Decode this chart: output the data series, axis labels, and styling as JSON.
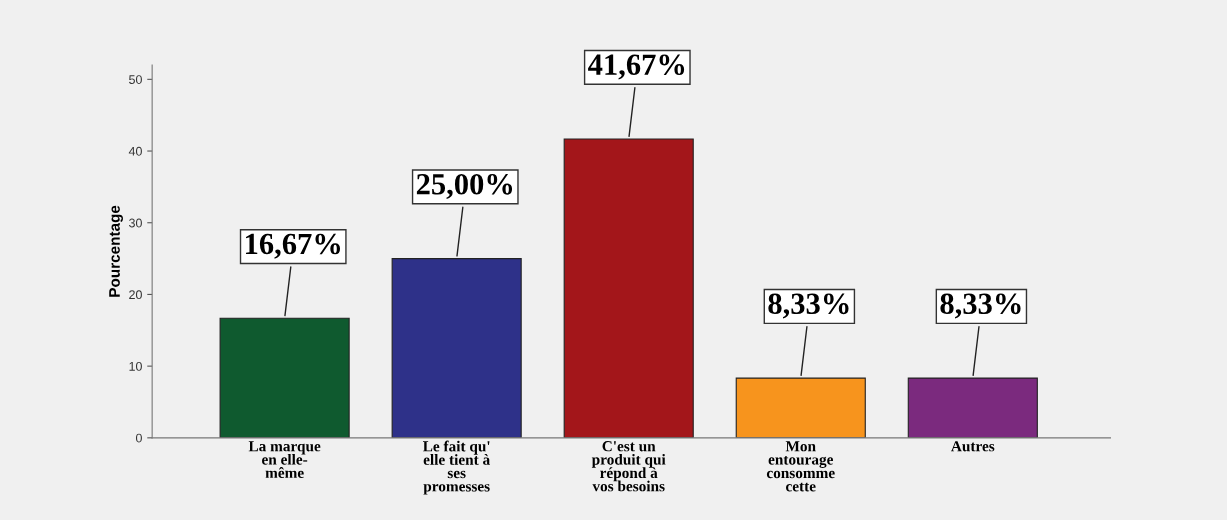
{
  "chart_data": {
    "type": "bar",
    "ylabel": "Pourcentage",
    "categories": [
      "La marque\nen elle-\nmême",
      "Le fait qu'\nelle tient à\nses\npromesses",
      "C'est un\nproduit qui\nrépond à\nvos besoins",
      "Mon\nentourage\nconsomme\ncette",
      "Autres"
    ],
    "values": [
      16.67,
      25.0,
      41.67,
      8.33,
      8.33
    ],
    "colors": [
      "#0f5a2f",
      "#2e3189",
      "#a3161a",
      "#f7941d",
      "#7b2a7e"
    ],
    "value_labels": [
      "16,67%",
      "25,00%",
      "41,67%",
      "8,33%",
      "8,33%"
    ],
    "ylim": [
      0,
      52
    ],
    "yticks": [
      0,
      10,
      20,
      30,
      40,
      50
    ],
    "grid": false,
    "legend": false
  }
}
